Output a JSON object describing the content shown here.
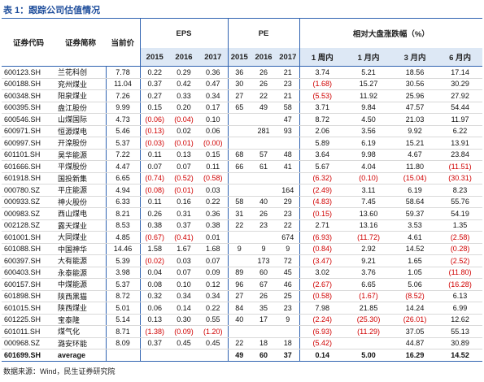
{
  "header": {
    "title": "表 1：跟踪公司估值情况",
    "source": "数据来源：Wind，民生证券研究院"
  },
  "table": {
    "columns": [
      "证券代码",
      "证券简称",
      "当前价"
    ],
    "groups": [
      {
        "label": "EPS",
        "subheads": [
          "2015",
          "2016",
          "2017"
        ]
      },
      {
        "label": "PE",
        "subheads": [
          "2015",
          "2016",
          "2017"
        ]
      },
      {
        "label": "相对大盘涨跌幅（%）",
        "subheads": [
          "1 周内",
          "1 月内",
          "3 月内",
          "6 月内"
        ]
      }
    ],
    "rows": [
      [
        "600123.SH",
        "兰花科创",
        "7.78",
        "0.22",
        "0.29",
        "0.36",
        "36",
        "26",
        "21",
        "3.74",
        "5.21",
        "18.56",
        "17.14"
      ],
      [
        "600188.SH",
        "兖州煤业",
        "11.04",
        "0.37",
        "0.42",
        "0.47",
        "30",
        "26",
        "23",
        "(1.68)",
        "15.27",
        "30.56",
        "30.29"
      ],
      [
        "600348.SH",
        "阳泉煤业",
        "7.26",
        "0.27",
        "0.33",
        "0.34",
        "27",
        "22",
        "21",
        "(5.53)",
        "11.92",
        "25.96",
        "27.92"
      ],
      [
        "600395.SH",
        "盘江股份",
        "9.99",
        "0.15",
        "0.20",
        "0.17",
        "65",
        "49",
        "58",
        "3.71",
        "9.84",
        "47.57",
        "54.44"
      ],
      [
        "600546.SH",
        "山煤国际",
        "4.73",
        "(0.06)",
        "(0.04)",
        "0.10",
        null,
        null,
        "47",
        "8.72",
        "4.50",
        "21.03",
        "11.97"
      ],
      [
        "600971.SH",
        "恒源煤电",
        "5.46",
        "(0.13)",
        "0.02",
        "0.06",
        null,
        "281",
        "93",
        "2.06",
        "3.56",
        "9.92",
        "6.22"
      ],
      [
        "600997.SH",
        "开滦股份",
        "5.37",
        "(0.03)",
        "(0.01)",
        "(0.00)",
        null,
        null,
        null,
        "5.89",
        "6.19",
        "15.21",
        "13.91"
      ],
      [
        "601101.SH",
        "昊华能源",
        "7.22",
        "0.11",
        "0.13",
        "0.15",
        "68",
        "57",
        "48",
        "3.64",
        "9.98",
        "4.67",
        "23.84"
      ],
      [
        "601666.SH",
        "平煤股份",
        "4.47",
        "0.07",
        "0.07",
        "0.11",
        "66",
        "61",
        "41",
        "5.67",
        "4.04",
        "11.80",
        "(11.51)"
      ],
      [
        "601918.SH",
        "国投新集",
        "6.65",
        "(0.74)",
        "(0.52)",
        "(0.58)",
        null,
        null,
        null,
        "(6.32)",
        "(0.10)",
        "(15.04)",
        "(30.31)"
      ],
      [
        "000780.SZ",
        "平庄能源",
        "4.94",
        "(0.08)",
        "(0.01)",
        "0.03",
        null,
        null,
        "164",
        "(2.49)",
        "3.11",
        "6.19",
        "8.23"
      ],
      [
        "000933.SZ",
        "神火股份",
        "6.33",
        "0.11",
        "0.16",
        "0.22",
        "58",
        "40",
        "29",
        "(4.83)",
        "7.45",
        "58.64",
        "55.76"
      ],
      [
        "000983.SZ",
        "西山煤电",
        "8.21",
        "0.26",
        "0.31",
        "0.36",
        "31",
        "26",
        "23",
        "(0.15)",
        "13.60",
        "59.37",
        "54.19"
      ],
      [
        "002128.SZ",
        "露天煤业",
        "8.53",
        "0.38",
        "0.37",
        "0.38",
        "22",
        "23",
        "22",
        "2.71",
        "13.16",
        "3.53",
        "1.35"
      ],
      [
        "601001.SH",
        "大同煤业",
        "4.85",
        "(0.67)",
        "(0.41)",
        "0.01",
        null,
        null,
        "674",
        "(6.93)",
        "(11.72)",
        "4.61",
        "(2.58)"
      ],
      [
        "601088.SH",
        "中国神华",
        "14.46",
        "1.58",
        "1.67",
        "1.68",
        "9",
        "9",
        "9",
        "(0.84)",
        "2.92",
        "14.52",
        "(0.28)"
      ],
      [
        "600397.SH",
        "大有能源",
        "5.39",
        "(0.02)",
        "0.03",
        "0.07",
        null,
        "173",
        "72",
        "(3.47)",
        "9.21",
        "1.65",
        "(2.52)"
      ],
      [
        "600403.SH",
        "永泰能源",
        "3.98",
        "0.04",
        "0.07",
        "0.09",
        "89",
        "60",
        "45",
        "3.02",
        "3.76",
        "1.05",
        "(11.80)"
      ],
      [
        "600157.SH",
        "中煤能源",
        "5.37",
        "0.08",
        "0.10",
        "0.12",
        "96",
        "67",
        "46",
        "(2.67)",
        "6.65",
        "5.06",
        "(16.28)"
      ],
      [
        "601898.SH",
        "陕西黑猫",
        "8.72",
        "0.32",
        "0.34",
        "0.34",
        "27",
        "26",
        "25",
        "(0.58)",
        "(1.67)",
        "(8.52)",
        "6.13"
      ],
      [
        "601015.SH",
        "陕西煤业",
        "5.01",
        "0.06",
        "0.14",
        "0.22",
        "84",
        "35",
        "23",
        "7.98",
        "21.85",
        "14.24",
        "6.99"
      ],
      [
        "601225.SH",
        "宝泰隆",
        "5.14",
        "0.13",
        "0.30",
        "0.55",
        "40",
        "17",
        "9",
        "(2.24)",
        "(25.30)",
        "(26.01)",
        "12.62"
      ],
      [
        "601011.SH",
        "煤气化",
        "8.71",
        "(1.38)",
        "(0.09)",
        "(1.20)",
        null,
        null,
        null,
        "(6.93)",
        "(11.29)",
        "37.05",
        "55.13"
      ],
      [
        "000968.SZ",
        "潞安环能",
        "8.09",
        "0.37",
        "0.45",
        "0.45",
        "22",
        "18",
        "18",
        "(5.42)",
        null,
        "44.87",
        "30.89"
      ],
      [
        "601699.SH",
        "average",
        null,
        null,
        null,
        null,
        "49",
        "60",
        "37",
        "0.14",
        "5.00",
        "16.29",
        "14.52"
      ]
    ]
  }
}
